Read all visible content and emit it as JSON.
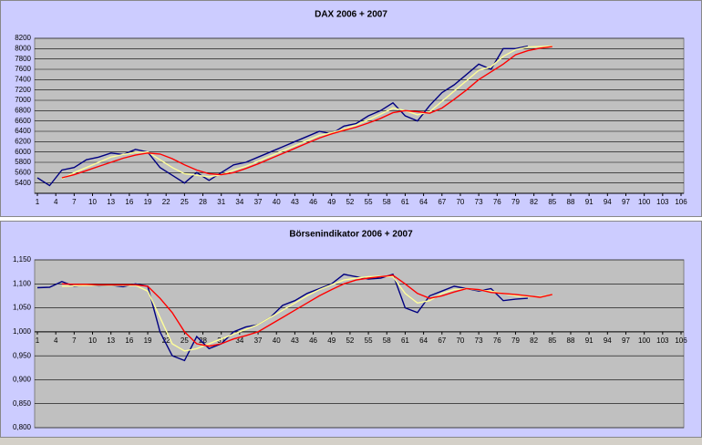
{
  "chart_data": [
    {
      "type": "line",
      "title": "DAX 2006 + 2007",
      "x": [
        1,
        3,
        5,
        7,
        9,
        11,
        13,
        15,
        17,
        19,
        21,
        23,
        25,
        27,
        29,
        31,
        33,
        35,
        37,
        39,
        41,
        43,
        45,
        47,
        49,
        51,
        53,
        55,
        57,
        59,
        61,
        63,
        65,
        67,
        69,
        71,
        73,
        75,
        77,
        79,
        81,
        83,
        85
      ],
      "series": [
        {
          "color": "#000080",
          "values": [
            5500,
            5350,
            5650,
            5700,
            5850,
            5900,
            5980,
            5950,
            6050,
            6000,
            5700,
            5550,
            5400,
            5600,
            5450,
            5600,
            5750,
            5800,
            5900,
            6000,
            6100,
            6200,
            6300,
            6400,
            6350,
            6500,
            6550,
            6700,
            6800,
            6950,
            6700,
            6600,
            6900,
            7150,
            7300,
            7500,
            7700,
            7600,
            8000,
            8000,
            8050,
            null,
            null
          ]
        },
        {
          "color": "#ffff99",
          "values": [
            null,
            null,
            5480,
            5600,
            5700,
            5800,
            5900,
            5950,
            5990,
            6000,
            5850,
            5700,
            5580,
            5550,
            5520,
            5560,
            5650,
            5720,
            5820,
            5920,
            6020,
            6120,
            6220,
            6320,
            6370,
            6440,
            6520,
            6620,
            6730,
            6850,
            6800,
            6720,
            6780,
            6980,
            7180,
            7380,
            7580,
            7650,
            7850,
            7980,
            8030,
            8040,
            8050
          ]
        },
        {
          "color": "#ff0000",
          "values": [
            null,
            null,
            5500,
            5560,
            5640,
            5720,
            5800,
            5880,
            5940,
            5980,
            5960,
            5870,
            5750,
            5650,
            5580,
            5560,
            5600,
            5680,
            5770,
            5870,
            5970,
            6070,
            6170,
            6270,
            6350,
            6420,
            6480,
            6560,
            6650,
            6760,
            6800,
            6780,
            6750,
            6850,
            7020,
            7200,
            7400,
            7550,
            7700,
            7880,
            7960,
            8010,
            8040
          ]
        }
      ],
      "xlim": [
        1,
        106
      ],
      "xticks": [
        1,
        4,
        7,
        10,
        13,
        16,
        19,
        22,
        25,
        28,
        31,
        34,
        37,
        40,
        43,
        46,
        49,
        52,
        55,
        58,
        61,
        64,
        67,
        70,
        73,
        76,
        79,
        82,
        85,
        88,
        91,
        94,
        97,
        100,
        103,
        106
      ],
      "ylim": [
        5200,
        8200
      ],
      "yticks": [
        5400,
        5600,
        5800,
        6000,
        6200,
        6400,
        6600,
        6800,
        7000,
        7200,
        7400,
        7600,
        7800,
        8000,
        8200
      ],
      "grid": true
    },
    {
      "type": "line",
      "title": "Börsenindikator 2006 + 2007",
      "x": [
        1,
        3,
        5,
        7,
        9,
        11,
        13,
        15,
        17,
        19,
        21,
        23,
        25,
        27,
        29,
        31,
        33,
        35,
        37,
        39,
        41,
        43,
        45,
        47,
        49,
        51,
        53,
        55,
        57,
        59,
        61,
        63,
        65,
        67,
        69,
        71,
        73,
        75,
        77,
        79,
        81,
        83,
        85
      ],
      "series": [
        {
          "color": "#000080",
          "values": [
            1.092,
            1.093,
            1.105,
            1.095,
            1.098,
            1.096,
            1.097,
            1.094,
            1.1,
            1.095,
            1.0,
            0.95,
            0.94,
            0.99,
            0.965,
            0.975,
            1.0,
            1.01,
            1.015,
            1.03,
            1.055,
            1.065,
            1.08,
            1.09,
            1.1,
            1.12,
            1.115,
            1.11,
            1.112,
            1.12,
            1.05,
            1.04,
            1.075,
            1.085,
            1.095,
            1.09,
            1.085,
            1.09,
            1.065,
            1.068,
            1.07,
            null,
            null
          ]
        },
        {
          "color": "#ffff99",
          "values": [
            null,
            null,
            1.095,
            1.096,
            1.097,
            1.097,
            1.097,
            1.097,
            1.097,
            1.085,
            1.03,
            0.975,
            0.96,
            0.965,
            0.975,
            0.985,
            0.995,
            1.005,
            1.015,
            1.03,
            1.045,
            1.06,
            1.075,
            1.088,
            1.098,
            1.108,
            1.112,
            1.115,
            1.116,
            1.115,
            1.08,
            1.06,
            1.065,
            1.08,
            1.088,
            1.09,
            1.087,
            1.085,
            1.08,
            1.075,
            1.074,
            1.073,
            1.078
          ]
        },
        {
          "color": "#ff0000",
          "values": [
            null,
            null,
            1.1,
            1.099,
            1.099,
            1.098,
            1.098,
            1.098,
            1.098,
            1.095,
            1.07,
            1.04,
            1.0,
            0.975,
            0.97,
            0.975,
            0.985,
            0.992,
            1.0,
            1.015,
            1.03,
            1.045,
            1.06,
            1.075,
            1.088,
            1.1,
            1.108,
            1.112,
            1.115,
            1.118,
            1.1,
            1.08,
            1.07,
            1.075,
            1.083,
            1.09,
            1.088,
            1.082,
            1.08,
            1.078,
            1.075,
            1.072,
            1.078
          ]
        }
      ],
      "xlim": [
        1,
        106
      ],
      "xticks": [
        1,
        4,
        7,
        10,
        13,
        16,
        19,
        22,
        25,
        28,
        31,
        34,
        37,
        40,
        43,
        46,
        49,
        52,
        55,
        58,
        61,
        64,
        67,
        70,
        73,
        76,
        79,
        82,
        85,
        88,
        91,
        94,
        97,
        100,
        103,
        106
      ],
      "ylim": [
        0.8,
        1.15
      ],
      "yticks": [
        {
          "value": 0.8,
          "label": "0,800"
        },
        {
          "value": 0.85,
          "label": "0,850"
        },
        {
          "value": 0.9,
          "label": "0,900"
        },
        {
          "value": 0.95,
          "label": "0,950"
        },
        {
          "value": 1.0,
          "label": "1,000"
        },
        {
          "value": 1.05,
          "label": "1,050"
        },
        {
          "value": 1.1,
          "label": "1,100"
        },
        {
          "value": 1.15,
          "label": "1,150"
        }
      ],
      "x_axis_crosses": 1.0,
      "grid": true
    }
  ]
}
